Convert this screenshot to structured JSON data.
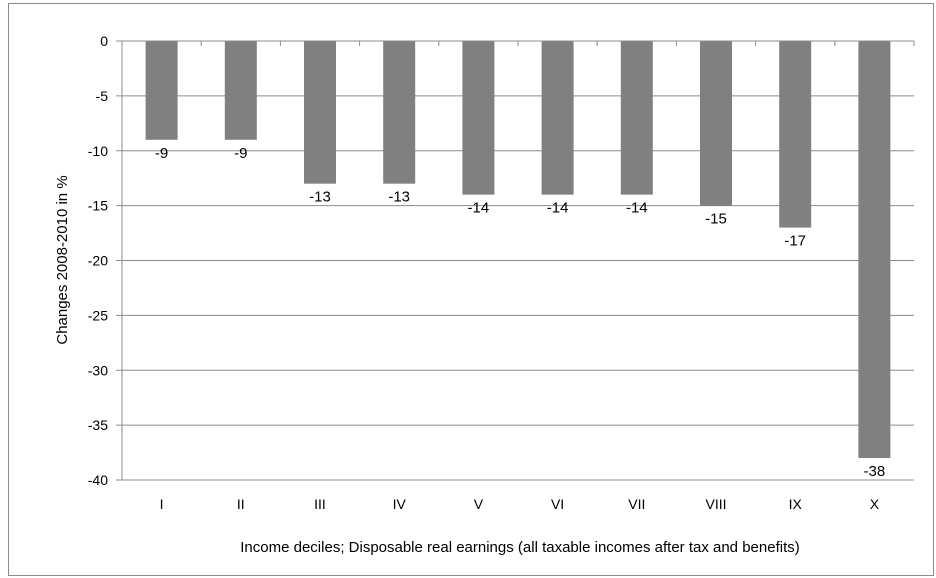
{
  "chart_data": {
    "type": "bar",
    "categories": [
      "I",
      "II",
      "III",
      "IV",
      "V",
      "VI",
      "VII",
      "VIII",
      "IX",
      "X"
    ],
    "values": [
      -9,
      -9,
      -13,
      -13,
      -14,
      -14,
      -14,
      -15,
      -17,
      -38
    ],
    "data_labels": [
      "-9",
      "-9",
      "-13",
      "-13",
      "-14",
      "-14",
      "-14",
      "-15",
      "-17",
      "-38"
    ],
    "title": "",
    "xlabel": "Income deciles; Disposable real earnings (all taxable incomes after tax and benefits)",
    "ylabel": "Changes 2008-2010 in %",
    "ylim": [
      -40,
      0
    ],
    "yticks": [
      0,
      -5,
      -10,
      -15,
      -20,
      -25,
      -30,
      -35,
      -40
    ],
    "ytick_labels": [
      "0",
      "-5",
      "-10",
      "-15",
      "-20",
      "-25",
      "-30",
      "-35",
      "-40"
    ],
    "grid": true,
    "legend": "none",
    "colors": {
      "bar": "#808080",
      "grid": "#8c8c8c",
      "axis": "#8c8c8c"
    }
  }
}
